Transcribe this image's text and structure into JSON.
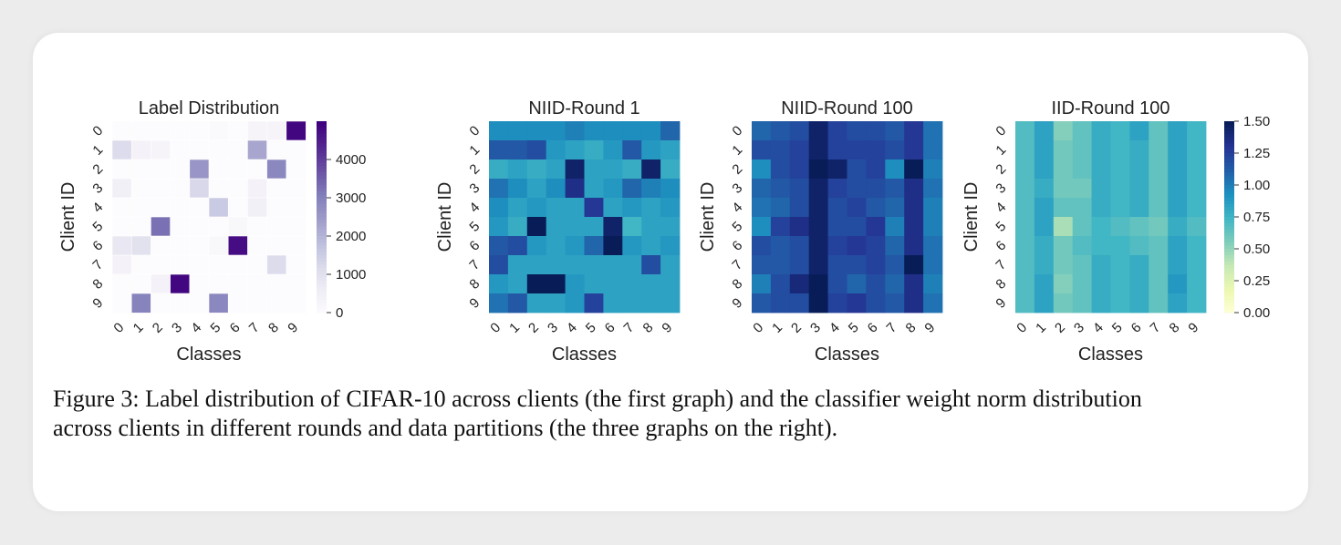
{
  "chart_data": [
    {
      "type": "heatmap",
      "title": "Label Distribution",
      "xlabel": "Classes",
      "ylabel": "Client ID",
      "x_ticks": [
        "0",
        "1",
        "2",
        "3",
        "4",
        "5",
        "6",
        "7",
        "8",
        "9"
      ],
      "y_ticks": [
        "0",
        "1",
        "2",
        "3",
        "4",
        "5",
        "6",
        "7",
        "8",
        "9"
      ],
      "colormap": "Purples",
      "vmin": 0,
      "vmax": 5000,
      "colorbar_ticks": [
        0,
        1000,
        2000,
        3000,
        4000
      ],
      "values": [
        [
          0,
          0,
          0,
          0,
          0,
          100,
          0,
          300,
          300,
          4900
        ],
        [
          1200,
          400,
          300,
          0,
          0,
          0,
          0,
          2300,
          0,
          0
        ],
        [
          0,
          0,
          0,
          0,
          2600,
          0,
          0,
          0,
          2900,
          0
        ],
        [
          500,
          0,
          0,
          0,
          1300,
          0,
          0,
          400,
          0,
          0
        ],
        [
          0,
          0,
          0,
          0,
          0,
          1600,
          0,
          500,
          0,
          0
        ],
        [
          0,
          0,
          3300,
          0,
          0,
          0,
          200,
          0,
          0,
          0
        ],
        [
          800,
          1000,
          0,
          0,
          0,
          200,
          4800,
          0,
          0,
          0
        ],
        [
          400,
          0,
          0,
          0,
          0,
          0,
          0,
          0,
          1200,
          0
        ],
        [
          0,
          0,
          400,
          4900,
          0,
          0,
          0,
          0,
          0,
          0
        ],
        [
          0,
          3000,
          0,
          0,
          0,
          2900,
          0,
          0,
          0,
          0
        ]
      ]
    },
    {
      "type": "heatmap",
      "title": "NIID-Round 1",
      "xlabel": "Classes",
      "ylabel": "Client ID",
      "x_ticks": [
        "0",
        "1",
        "2",
        "3",
        "4",
        "5",
        "6",
        "7",
        "8",
        "9"
      ],
      "y_ticks": [
        "0",
        "1",
        "2",
        "3",
        "4",
        "5",
        "6",
        "7",
        "8",
        "9"
      ],
      "colormap": "YlGnBu",
      "vmin": 0,
      "vmax": 1.5,
      "values": [
        [
          0.95,
          0.95,
          0.95,
          0.95,
          1.0,
          0.95,
          0.95,
          0.95,
          0.95,
          1.1
        ],
        [
          1.15,
          1.15,
          1.2,
          0.9,
          0.85,
          0.8,
          0.9,
          1.15,
          0.9,
          0.85
        ],
        [
          0.8,
          0.85,
          0.8,
          0.85,
          1.45,
          0.85,
          0.85,
          0.8,
          1.45,
          0.8
        ],
        [
          1.05,
          0.95,
          0.85,
          0.95,
          1.35,
          0.85,
          0.9,
          1.1,
          1.0,
          0.95
        ],
        [
          0.95,
          0.85,
          0.9,
          0.85,
          0.85,
          1.3,
          0.85,
          0.9,
          0.85,
          0.9
        ],
        [
          0.9,
          0.8,
          1.5,
          0.85,
          0.85,
          0.85,
          1.45,
          0.75,
          0.85,
          0.85
        ],
        [
          1.15,
          1.2,
          0.9,
          0.85,
          0.9,
          1.1,
          1.55,
          0.9,
          0.85,
          0.9
        ],
        [
          1.2,
          0.85,
          0.85,
          0.85,
          0.85,
          0.85,
          0.85,
          0.85,
          1.2,
          0.85
        ],
        [
          0.9,
          0.85,
          1.5,
          1.5,
          0.9,
          0.85,
          0.85,
          0.85,
          0.85,
          0.85
        ],
        [
          1.05,
          1.15,
          0.85,
          0.85,
          0.9,
          1.25,
          0.85,
          0.85,
          0.85,
          0.85
        ]
      ]
    },
    {
      "type": "heatmap",
      "title": "NIID-Round 100",
      "xlabel": "Classes",
      "ylabel": "Client ID",
      "x_ticks": [
        "0",
        "1",
        "2",
        "3",
        "4",
        "5",
        "6",
        "7",
        "8",
        "9"
      ],
      "y_ticks": [
        "0",
        "1",
        "2",
        "3",
        "4",
        "5",
        "6",
        "7",
        "8",
        "9"
      ],
      "colormap": "YlGnBu",
      "vmin": 0,
      "vmax": 1.5,
      "values": [
        [
          1.1,
          1.15,
          1.2,
          1.45,
          1.25,
          1.2,
          1.2,
          1.15,
          1.3,
          1.05
        ],
        [
          1.2,
          1.2,
          1.25,
          1.45,
          1.25,
          1.25,
          1.25,
          1.2,
          1.3,
          1.05
        ],
        [
          0.95,
          1.2,
          1.25,
          1.5,
          1.45,
          1.2,
          1.25,
          0.95,
          1.5,
          1.0
        ],
        [
          1.1,
          1.15,
          1.2,
          1.45,
          1.25,
          1.2,
          1.2,
          1.15,
          1.35,
          1.05
        ],
        [
          1.05,
          1.1,
          1.2,
          1.45,
          1.2,
          1.25,
          1.15,
          1.1,
          1.35,
          1.0
        ],
        [
          0.95,
          1.25,
          1.35,
          1.45,
          1.2,
          1.2,
          1.3,
          1.0,
          1.35,
          1.0
        ],
        [
          1.2,
          1.15,
          1.2,
          1.45,
          1.25,
          1.3,
          1.25,
          1.1,
          1.35,
          1.05
        ],
        [
          1.15,
          1.15,
          1.2,
          1.45,
          1.2,
          1.2,
          1.25,
          1.15,
          1.5,
          1.05
        ],
        [
          1.0,
          1.2,
          1.4,
          1.55,
          1.2,
          1.1,
          1.2,
          1.1,
          1.35,
          1.0
        ],
        [
          1.15,
          1.2,
          1.2,
          1.5,
          1.25,
          1.3,
          1.2,
          1.15,
          1.35,
          1.05
        ]
      ]
    },
    {
      "type": "heatmap",
      "title": "IID-Round 100",
      "xlabel": "Classes",
      "ylabel": "Client ID",
      "x_ticks": [
        "0",
        "1",
        "2",
        "3",
        "4",
        "5",
        "6",
        "7",
        "8",
        "9"
      ],
      "y_ticks": [
        "0",
        "1",
        "2",
        "3",
        "4",
        "5",
        "6",
        "7",
        "8",
        "9"
      ],
      "colormap": "YlGnBu",
      "vmin": 0,
      "vmax": 1.5,
      "colorbar_ticks": [
        "0.00",
        "0.25",
        "0.50",
        "0.75",
        "1.00",
        "1.25",
        "1.50"
      ],
      "values": [
        [
          0.7,
          0.85,
          0.55,
          0.65,
          0.8,
          0.75,
          0.85,
          0.65,
          0.85,
          0.75
        ],
        [
          0.7,
          0.85,
          0.6,
          0.65,
          0.8,
          0.75,
          0.8,
          0.65,
          0.85,
          0.75
        ],
        [
          0.7,
          0.85,
          0.6,
          0.65,
          0.8,
          0.75,
          0.8,
          0.65,
          0.85,
          0.75
        ],
        [
          0.7,
          0.8,
          0.6,
          0.6,
          0.8,
          0.75,
          0.8,
          0.65,
          0.85,
          0.75
        ],
        [
          0.7,
          0.85,
          0.65,
          0.65,
          0.8,
          0.75,
          0.8,
          0.65,
          0.85,
          0.75
        ],
        [
          0.7,
          0.85,
          0.45,
          0.65,
          0.75,
          0.7,
          0.65,
          0.6,
          0.8,
          0.7
        ],
        [
          0.7,
          0.8,
          0.6,
          0.7,
          0.75,
          0.75,
          0.7,
          0.65,
          0.85,
          0.75
        ],
        [
          0.7,
          0.8,
          0.6,
          0.65,
          0.8,
          0.75,
          0.8,
          0.65,
          0.85,
          0.75
        ],
        [
          0.7,
          0.85,
          0.55,
          0.65,
          0.8,
          0.75,
          0.8,
          0.65,
          0.9,
          0.75
        ],
        [
          0.7,
          0.85,
          0.6,
          0.65,
          0.8,
          0.75,
          0.8,
          0.65,
          0.85,
          0.75
        ]
      ]
    }
  ],
  "caption": {
    "line1": "Figure 3: Label distribution of CIFAR-10 across clients (the first graph) and the classifier weight norm distribution",
    "line2": "across clients in different rounds and data partitions (the three graphs on the right)."
  }
}
